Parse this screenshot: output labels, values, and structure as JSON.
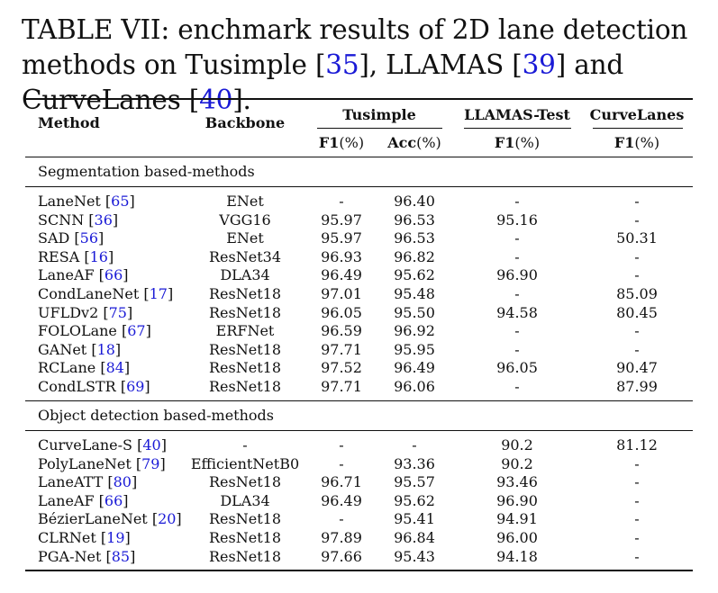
{
  "caption": {
    "prefix": "TABLE VII: enchmark results of 2D lane detection methods on Tusimple [",
    "ref1": "35",
    "mid1": "], LLAMAS [",
    "ref2": "39",
    "mid2": "] and CurveLanes [",
    "ref3": "40",
    "suffix": "]."
  },
  "header": {
    "method": "Method",
    "backbone": "Backbone",
    "tusimple": "Tusimple",
    "llamas": "LLAMAS-Test",
    "curvelanes": "CurveLanes",
    "f1": "F1",
    "acc": "Acc",
    "pct": "(%)"
  },
  "sections": [
    {
      "title": "Segmentation based-methods",
      "rows": [
        {
          "name": "LaneNet",
          "ref": "65",
          "backbone": "ENet",
          "tu_f1": "-",
          "tu_acc": "96.40",
          "llamas_f1": "-",
          "curve_f1": "-"
        },
        {
          "name": "SCNN",
          "ref": "36",
          "backbone": "VGG16",
          "tu_f1": "95.97",
          "tu_acc": "96.53",
          "llamas_f1": "95.16",
          "curve_f1": "-"
        },
        {
          "name": "SAD",
          "ref": "56",
          "backbone": "ENet",
          "tu_f1": "95.97",
          "tu_acc": "96.53",
          "llamas_f1": "-",
          "curve_f1": "50.31"
        },
        {
          "name": "RESA",
          "ref": "16",
          "backbone": "ResNet34",
          "tu_f1": "96.93",
          "tu_acc": "96.82",
          "llamas_f1": "-",
          "curve_f1": "-"
        },
        {
          "name": "LaneAF",
          "ref": "66",
          "backbone": "DLA34",
          "tu_f1": "96.49",
          "tu_acc": "95.62",
          "llamas_f1": "96.90",
          "curve_f1": "-"
        },
        {
          "name": "CondLaneNet",
          "ref": "17",
          "backbone": "ResNet18",
          "tu_f1": "97.01",
          "tu_acc": "95.48",
          "llamas_f1": "-",
          "curve_f1": "85.09"
        },
        {
          "name": "UFLDv2",
          "ref": "75",
          "backbone": "ResNet18",
          "tu_f1": "96.05",
          "tu_acc": "95.50",
          "llamas_f1": "94.58",
          "curve_f1": "80.45"
        },
        {
          "name": "FOLOLane",
          "ref": "67",
          "backbone": "ERFNet",
          "tu_f1": "96.59",
          "tu_acc": "96.92",
          "llamas_f1": "-",
          "curve_f1": "-"
        },
        {
          "name": "GANet",
          "ref": "18",
          "backbone": "ResNet18",
          "tu_f1": "97.71",
          "tu_acc": "95.95",
          "llamas_f1": "-",
          "curve_f1": "-"
        },
        {
          "name": "RCLane",
          "ref": "84",
          "backbone": "ResNet18",
          "tu_f1": "97.52",
          "tu_acc": "96.49",
          "llamas_f1": "96.05",
          "curve_f1": "90.47"
        },
        {
          "name": "CondLSTR",
          "ref": "69",
          "backbone": "ResNet18",
          "tu_f1": "97.71",
          "tu_acc": "96.06",
          "llamas_f1": "-",
          "curve_f1": "87.99"
        }
      ]
    },
    {
      "title": "Object detection based-methods",
      "rows": [
        {
          "name": "CurveLane-S",
          "ref": "40",
          "backbone": "-",
          "tu_f1": "-",
          "tu_acc": "-",
          "llamas_f1": "90.2",
          "curve_f1": "81.12"
        },
        {
          "name": "PolyLaneNet",
          "ref": "79",
          "backbone": "EfficientNetB0",
          "tu_f1": "-",
          "tu_acc": "93.36",
          "llamas_f1": "90.2",
          "curve_f1": "-"
        },
        {
          "name": "LaneATT",
          "ref": "80",
          "backbone": "ResNet18",
          "tu_f1": "96.71",
          "tu_acc": "95.57",
          "llamas_f1": "93.46",
          "curve_f1": "-"
        },
        {
          "name": "LaneAF",
          "ref": "66",
          "backbone": "DLA34",
          "tu_f1": "96.49",
          "tu_acc": "95.62",
          "llamas_f1": "96.90",
          "curve_f1": "-"
        },
        {
          "name": "BézierLaneNet",
          "ref": "20",
          "backbone": "ResNet18",
          "tu_f1": "-",
          "tu_acc": "95.41",
          "llamas_f1": "94.91",
          "curve_f1": "-"
        },
        {
          "name": "CLRNet",
          "ref": "19",
          "backbone": "ResNet18",
          "tu_f1": "97.89",
          "tu_acc": "96.84",
          "llamas_f1": "96.00",
          "curve_f1": "-"
        },
        {
          "name": "PGA-Net",
          "ref": "85",
          "backbone": "ResNet18",
          "tu_f1": "97.66",
          "tu_acc": "95.43",
          "llamas_f1": "94.18",
          "curve_f1": "-"
        }
      ]
    }
  ]
}
